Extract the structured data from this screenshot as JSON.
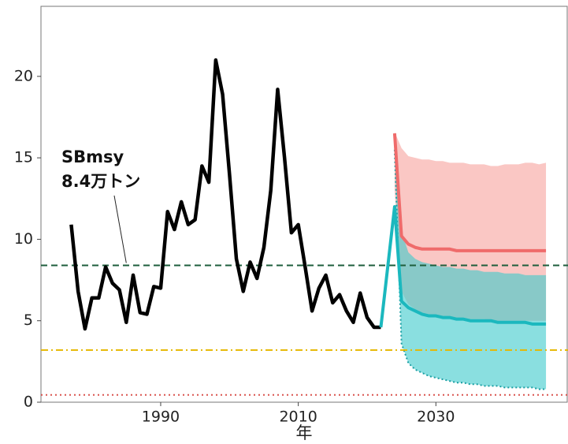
{
  "chart_data": {
    "type": "line",
    "x_label": "年",
    "xlim": [
      1972.6,
      2049.2
    ],
    "ylim": [
      0,
      24.3
    ],
    "xticks": [
      1990,
      2010,
      2030
    ],
    "yticks": [
      0,
      5,
      10,
      15,
      20
    ],
    "bands": [
      {
        "color": "#f7a19d",
        "x": [
          2024,
          2025,
          2026,
          2027,
          2028,
          2029,
          2030,
          2031,
          2032,
          2033,
          2034,
          2035,
          2036,
          2037,
          2038,
          2039,
          2040,
          2041,
          2042,
          2043,
          2044,
          2045,
          2046
        ],
        "upper": [
          16.6,
          15.6,
          15.1,
          15.0,
          14.9,
          14.9,
          14.8,
          14.8,
          14.7,
          14.7,
          14.7,
          14.6,
          14.6,
          14.6,
          14.5,
          14.5,
          14.6,
          14.6,
          14.6,
          14.7,
          14.7,
          14.6,
          14.7
        ],
        "lower": [
          13.0,
          6.8,
          6.0,
          5.7,
          5.5,
          5.4,
          5.3,
          5.3,
          5.2,
          5.2,
          5.2,
          5.1,
          5.1,
          5.1,
          5.0,
          5.0,
          5.0,
          5.0,
          5.0,
          5.0,
          5.0,
          5.0,
          5.0
        ]
      },
      {
        "color": "#3cc9cc",
        "x": [
          2024,
          2025,
          2026,
          2027,
          2028,
          2029,
          2030,
          2031,
          2032,
          2033,
          2034,
          2035,
          2036,
          2037,
          2038,
          2039,
          2040,
          2041,
          2042,
          2043,
          2044,
          2045,
          2046
        ],
        "upper": [
          16.0,
          10.5,
          9.2,
          8.8,
          8.6,
          8.5,
          8.4,
          8.3,
          8.3,
          8.2,
          8.2,
          8.1,
          8.1,
          8.0,
          8.0,
          8.0,
          7.9,
          7.9,
          7.9,
          7.8,
          7.8,
          7.8,
          7.8
        ],
        "lower": [
          15.5,
          3.6,
          2.4,
          2.0,
          1.8,
          1.6,
          1.5,
          1.4,
          1.3,
          1.2,
          1.2,
          1.1,
          1.1,
          1.0,
          1.0,
          1.0,
          0.9,
          0.9,
          0.9,
          0.9,
          0.9,
          0.8,
          0.8
        ]
      }
    ],
    "hlines": [
      {
        "value": 8.4,
        "color": "#1e5e3c",
        "style": "dashed"
      },
      {
        "value": 3.2,
        "color": "#e6b800",
        "style": "dashdot"
      },
      {
        "value": 0.45,
        "color": "#d9534f",
        "style": "dotted"
      }
    ],
    "series": [
      {
        "color": "#000000",
        "x": [
          1977,
          1978,
          1979,
          1980,
          1981,
          1982,
          1983,
          1984,
          1985,
          1986,
          1987,
          1988,
          1989,
          1990,
          1991,
          1992,
          1993,
          1994,
          1995,
          1996,
          1997,
          1998,
          1999,
          2000,
          2001,
          2002,
          2003,
          2004,
          2005,
          2006,
          2007,
          2008,
          2009,
          2010,
          2011,
          2012,
          2013,
          2014,
          2015,
          2016,
          2017,
          2018,
          2019,
          2020,
          2021,
          2022
        ],
        "values": [
          10.9,
          6.8,
          4.5,
          6.4,
          6.4,
          8.3,
          7.3,
          6.9,
          4.9,
          7.8,
          5.5,
          5.4,
          7.1,
          7.0,
          11.7,
          10.6,
          12.3,
          10.9,
          11.2,
          14.5,
          13.5,
          21.0,
          18.9,
          14.0,
          8.8,
          6.8,
          8.6,
          7.6,
          9.5,
          13.0,
          19.2,
          15.0,
          10.4,
          10.9,
          8.3,
          5.6,
          7.0,
          7.8,
          6.1,
          6.6,
          5.6,
          4.9,
          6.7,
          5.2,
          4.6,
          4.6
        ]
      },
      {
        "color": "#ef6b6b",
        "x": [
          2024,
          2025,
          2026,
          2027,
          2028,
          2029,
          2030,
          2031,
          2032,
          2033,
          2034,
          2035,
          2036,
          2037,
          2038,
          2039,
          2040,
          2041,
          2042,
          2043,
          2044,
          2045,
          2046
        ],
        "values": [
          16.5,
          10.2,
          9.7,
          9.5,
          9.4,
          9.4,
          9.4,
          9.4,
          9.4,
          9.3,
          9.3,
          9.3,
          9.3,
          9.3,
          9.3,
          9.3,
          9.3,
          9.3,
          9.3,
          9.3,
          9.3,
          9.3,
          9.3
        ]
      },
      {
        "color": "#1bb8be",
        "x": [
          2022,
          2023,
          2024,
          2025,
          2026,
          2027,
          2028,
          2029,
          2030,
          2031,
          2032,
          2033,
          2034,
          2035,
          2036,
          2037,
          2038,
          2039,
          2040,
          2041,
          2042,
          2043,
          2044,
          2045,
          2046
        ],
        "values": [
          4.6,
          8.3,
          12.0,
          6.2,
          5.8,
          5.6,
          5.4,
          5.3,
          5.3,
          5.2,
          5.2,
          5.1,
          5.1,
          5.0,
          5.0,
          5.0,
          5.0,
          4.9,
          4.9,
          4.9,
          4.9,
          4.9,
          4.8,
          4.8,
          4.8
        ]
      }
    ],
    "annotation": {
      "lines": [
        "SBmsy",
        "8.4万トン"
      ],
      "x": 1985,
      "y": 8.4
    }
  }
}
